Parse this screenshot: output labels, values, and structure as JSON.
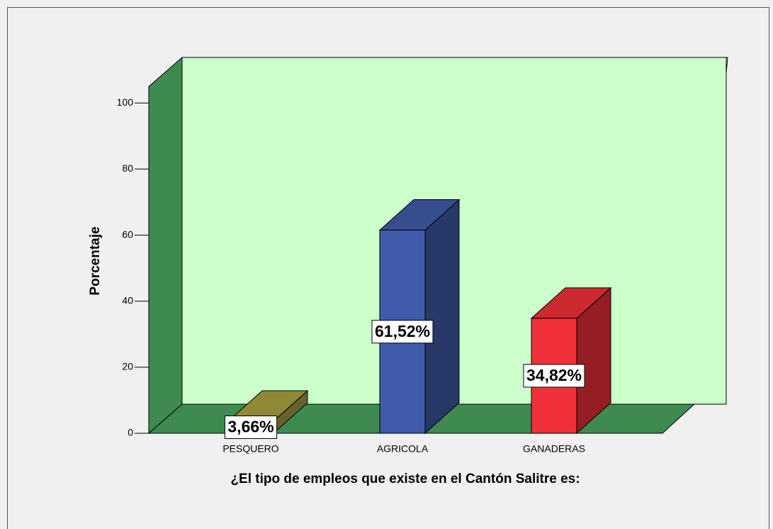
{
  "chart_data": {
    "type": "bar3d",
    "x_label": "¿El tipo de empleos que existe en el Cantón Salitre es:",
    "y_label": "Porcentaje",
    "categories": [
      "PESQUERO",
      "AGRICOLA",
      "GANADERAS"
    ],
    "values": [
      3.66,
      61.52,
      34.82
    ],
    "value_labels": [
      "3,66%",
      "61,52%",
      "34,82%"
    ],
    "colors": [
      "#a8a040",
      "#3f5ba9",
      "#f0303a"
    ],
    "ylim": [
      0,
      105
    ],
    "yticks": [
      0,
      20,
      40,
      60,
      80,
      100
    ]
  }
}
